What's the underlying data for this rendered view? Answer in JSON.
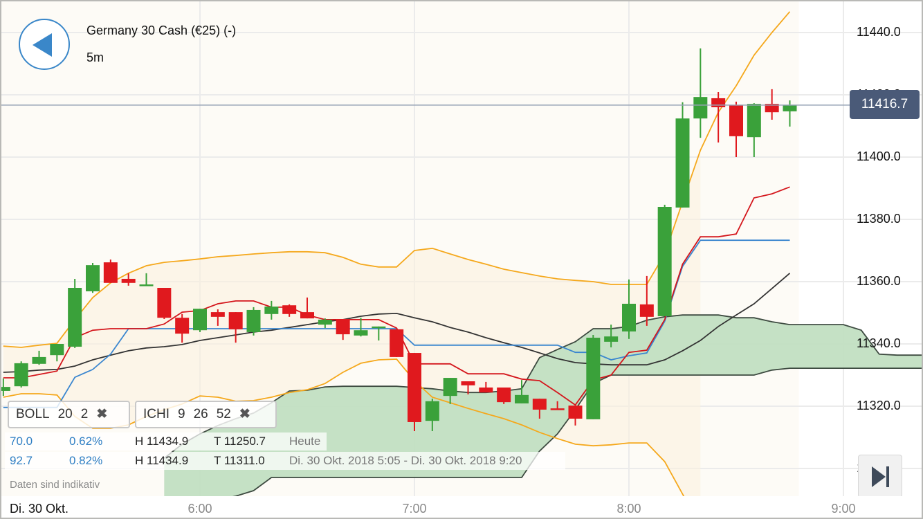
{
  "header": {
    "instrument": "Germany 30 Cash (€25) (-)",
    "interval": "5m"
  },
  "current_price": "11416.7",
  "indicators": [
    {
      "name": "BOLL",
      "params": [
        "20",
        "2"
      ],
      "remove": "✖"
    },
    {
      "name": "ICHI",
      "params": [
        "9",
        "26",
        "52"
      ],
      "remove": "✖"
    }
  ],
  "info_rows": [
    {
      "change": "70.0",
      "change_pct": "0.62%",
      "high": "H 11434.9",
      "low": "T 11250.7",
      "period": "Heute"
    },
    {
      "change": "92.7",
      "change_pct": "0.82%",
      "high": "H 11434.9",
      "low": "T 11311.0",
      "period": "Di. 30 Okt. 2018 5:05 - Di. 30 Okt. 2018 9:20"
    }
  ],
  "disclaimer": "Daten sind indikativ",
  "icons": {
    "back": "back-triangle-icon",
    "skip": "skip-to-end-icon",
    "remove": "close-x-icon"
  },
  "colors": {
    "up": "#3aa13a",
    "down": "#e0191e",
    "boll_bands": "#f5a81c",
    "boll_mid": "#333333",
    "tenkan": "#d4161c",
    "kijun": "#3a86cf",
    "cloud": "#c2dfc2",
    "price_tag": "#4a5a78"
  },
  "chart_data": {
    "type": "candlestick",
    "date_label": "Di. 30 Okt.",
    "x_ticks": [
      "6:00",
      "7:00",
      "8:00",
      "9:00"
    ],
    "y_ticks": [
      "11440.0",
      "11420.0",
      "11400.0",
      "11380.0",
      "11360.0",
      "11340.0",
      "11320.0",
      "11300.0"
    ],
    "ylim": [
      11291,
      11450
    ],
    "grid": true,
    "candles_fields": [
      "time",
      "open",
      "high",
      "low",
      "close"
    ],
    "candles": [
      [
        "05:05",
        11324.9,
        11328.9,
        11323.3,
        11326.2
      ],
      [
        "05:10",
        11326.4,
        11334.4,
        11326.0,
        11333.8
      ],
      [
        "05:15",
        11333.6,
        11337.8,
        11333.3,
        11335.8
      ],
      [
        "05:20",
        11336.4,
        11340.0,
        11334.4,
        11340.0
      ],
      [
        "05:25",
        11339.1,
        11360.9,
        11338.7,
        11358.0
      ],
      [
        "05:30",
        11356.9,
        11366.0,
        11356.4,
        11365.3
      ],
      [
        "05:35",
        11366.2,
        11367.1,
        11359.6,
        11359.6
      ],
      [
        "05:40",
        11360.9,
        11362.7,
        11358.7,
        11359.6
      ],
      [
        "05:45",
        11358.9,
        11362.7,
        11358.9,
        11359.1
      ],
      [
        "05:50",
        11358.0,
        11358.0,
        11348.0,
        11348.4
      ],
      [
        "05:55",
        11348.4,
        11349.6,
        11340.4,
        11343.3
      ],
      [
        "06:00",
        11344.4,
        11351.3,
        11343.8,
        11351.3
      ],
      [
        "06:05",
        11350.2,
        11351.1,
        11345.8,
        11348.7
      ],
      [
        "06:10",
        11350.2,
        11350.2,
        11340.4,
        11344.7
      ],
      [
        "06:15",
        11343.8,
        11351.8,
        11342.7,
        11350.9
      ],
      [
        "06:20",
        11349.6,
        11353.8,
        11347.8,
        11352.0
      ],
      [
        "06:25",
        11352.4,
        11352.7,
        11348.7,
        11349.6
      ],
      [
        "06:30",
        11350.2,
        11354.9,
        11348.2,
        11348.2
      ],
      [
        "06:35",
        11346.2,
        11348.2,
        11345.1,
        11347.8
      ],
      [
        "06:40",
        11348.0,
        11348.0,
        11341.3,
        11343.1
      ],
      [
        "06:45",
        11342.7,
        11348.4,
        11342.4,
        11344.4
      ],
      [
        "06:50",
        11345.1,
        11345.6,
        11341.1,
        11345.6
      ],
      [
        "06:55",
        11344.7,
        11344.7,
        11335.8,
        11335.8
      ],
      [
        "07:00",
        11337.1,
        11337.1,
        11312.0,
        11314.9
      ],
      [
        "07:05",
        11315.3,
        11322.4,
        11312.0,
        11321.6
      ],
      [
        "07:10",
        11323.3,
        11329.1,
        11320.7,
        11329.1
      ],
      [
        "07:15",
        11328.0,
        11328.0,
        11323.8,
        11326.7
      ],
      [
        "07:20",
        11326.0,
        11327.8,
        11324.4,
        11324.4
      ],
      [
        "07:25",
        11326.0,
        11326.0,
        11320.7,
        11321.3
      ],
      [
        "07:30",
        11320.9,
        11328.4,
        11320.9,
        11323.6
      ],
      [
        "07:35",
        11322.4,
        11322.4,
        11316.0,
        11318.9
      ],
      [
        "07:40",
        11319.3,
        11321.6,
        11318.9,
        11318.9
      ],
      [
        "07:45",
        11320.2,
        11320.2,
        11313.8,
        11316.0
      ],
      [
        "07:50",
        11315.8,
        11342.9,
        11315.8,
        11342.0
      ],
      [
        "07:55",
        11340.7,
        11346.2,
        11338.9,
        11342.4
      ],
      [
        "08:00",
        11344.0,
        11360.7,
        11341.6,
        11352.9
      ],
      [
        "08:05",
        11352.7,
        11361.8,
        11345.8,
        11348.7
      ],
      [
        "08:10",
        11348.9,
        11384.7,
        11348.9,
        11384.0
      ],
      [
        "08:15",
        11383.8,
        11417.6,
        11383.8,
        11412.4
      ],
      [
        "08:20",
        11412.4,
        11434.9,
        11406.2,
        11419.3
      ],
      [
        "08:25",
        11418.9,
        11420.9,
        11404.7,
        11416.0
      ],
      [
        "08:30",
        11416.7,
        11417.8,
        11400.0,
        11406.7
      ],
      [
        "08:35",
        11406.4,
        11417.3,
        11400.0,
        11417.1
      ],
      [
        "08:40",
        11417.1,
        11421.8,
        11412.0,
        11414.4
      ],
      [
        "08:45",
        11414.7,
        11418.2,
        11409.8,
        11416.7
      ]
    ],
    "boll_upper": [
      [
        "05:05",
        11339.3
      ],
      [
        "05:10",
        11338.9
      ],
      [
        "05:15",
        11339.6
      ],
      [
        "05:20",
        11340.2
      ],
      [
        "05:25",
        11347.8
      ],
      [
        "05:30",
        11354.9
      ],
      [
        "05:35",
        11359.6
      ],
      [
        "05:40",
        11362.7
      ],
      [
        "05:45",
        11365.1
      ],
      [
        "05:50",
        11366.2
      ],
      [
        "05:55",
        11366.7
      ],
      [
        "06:00",
        11367.3
      ],
      [
        "06:05",
        11368.0
      ],
      [
        "06:10",
        11368.4
      ],
      [
        "06:15",
        11368.9
      ],
      [
        "06:20",
        11369.3
      ],
      [
        "06:25",
        11369.6
      ],
      [
        "06:30",
        11369.6
      ],
      [
        "06:35",
        11369.3
      ],
      [
        "06:40",
        11367.8
      ],
      [
        "06:45",
        11365.6
      ],
      [
        "06:50",
        11364.7
      ],
      [
        "06:55",
        11364.7
      ],
      [
        "07:00",
        11370.0
      ],
      [
        "07:05",
        11370.7
      ],
      [
        "07:10",
        11368.9
      ],
      [
        "07:15",
        11367.1
      ],
      [
        "07:20",
        11365.6
      ],
      [
        "07:25",
        11364.0
      ],
      [
        "07:30",
        11362.9
      ],
      [
        "07:35",
        11361.8
      ],
      [
        "07:40",
        11360.9
      ],
      [
        "07:45",
        11360.4
      ],
      [
        "07:50",
        11360.0
      ],
      [
        "07:55",
        11359.1
      ],
      [
        "08:00",
        11359.1
      ],
      [
        "08:05",
        11359.1
      ],
      [
        "08:10",
        11368.9
      ],
      [
        "08:15",
        11385.6
      ],
      [
        "08:20",
        11402.2
      ],
      [
        "08:25",
        11414.4
      ],
      [
        "08:30",
        11422.9
      ],
      [
        "08:35",
        11432.7
      ],
      [
        "08:40",
        11440.0
      ],
      [
        "08:45",
        11446.7
      ]
    ],
    "boll_mid": [
      [
        "05:05",
        11330.9
      ],
      [
        "05:10",
        11331.1
      ],
      [
        "05:15",
        11331.6
      ],
      [
        "05:20",
        11331.8
      ],
      [
        "05:25",
        11332.9
      ],
      [
        "05:30",
        11334.9
      ],
      [
        "05:35",
        11336.4
      ],
      [
        "05:40",
        11337.8
      ],
      [
        "05:45",
        11338.7
      ],
      [
        "05:50",
        11339.1
      ],
      [
        "05:55",
        11339.8
      ],
      [
        "06:00",
        11341.1
      ],
      [
        "06:05",
        11342.0
      ],
      [
        "06:10",
        11342.9
      ],
      [
        "06:15",
        11343.8
      ],
      [
        "06:20",
        11344.4
      ],
      [
        "06:25",
        11345.3
      ],
      [
        "06:30",
        11346.2
      ],
      [
        "06:35",
        11347.1
      ],
      [
        "06:40",
        11347.8
      ],
      [
        "06:45",
        11348.9
      ],
      [
        "06:50",
        11349.6
      ],
      [
        "06:55",
        11349.8
      ],
      [
        "07:00",
        11348.4
      ],
      [
        "07:05",
        11347.1
      ],
      [
        "07:10",
        11345.3
      ],
      [
        "07:15",
        11343.8
      ],
      [
        "07:20",
        11342.0
      ],
      [
        "07:25",
        11340.4
      ],
      [
        "07:30",
        11338.9
      ],
      [
        "07:35",
        11337.1
      ],
      [
        "07:40",
        11335.3
      ],
      [
        "07:45",
        11334.0
      ],
      [
        "07:50",
        11333.6
      ],
      [
        "07:55",
        11333.3
      ],
      [
        "08:00",
        11333.3
      ],
      [
        "08:05",
        11333.3
      ],
      [
        "08:10",
        11334.9
      ],
      [
        "08:15",
        11337.8
      ],
      [
        "08:20",
        11341.1
      ],
      [
        "08:25",
        11345.6
      ],
      [
        "08:30",
        11349.3
      ],
      [
        "08:35",
        11352.9
      ],
      [
        "08:40",
        11357.8
      ],
      [
        "08:45",
        11362.7
      ]
    ],
    "boll_lower": [
      [
        "05:05",
        11322.9
      ],
      [
        "05:10",
        11324.0
      ],
      [
        "05:15",
        11324.0
      ],
      [
        "05:20",
        11323.6
      ],
      [
        "05:25",
        11316.7
      ],
      [
        "05:30",
        11312.9
      ],
      [
        "05:35",
        11312.9
      ],
      [
        "05:40",
        11314.0
      ],
      [
        "05:45",
        11316.7
      ],
      [
        "05:50",
        11318.9
      ],
      [
        "05:55",
        11320.7
      ],
      [
        "06:00",
        11323.3
      ],
      [
        "06:05",
        11322.9
      ],
      [
        "06:10",
        11321.6
      ],
      [
        "06:15",
        11321.8
      ],
      [
        "06:20",
        11322.9
      ],
      [
        "06:25",
        11324.4
      ],
      [
        "06:30",
        11325.3
      ],
      [
        "06:35",
        11327.3
      ],
      [
        "06:40",
        11330.9
      ],
      [
        "06:45",
        11333.8
      ],
      [
        "06:50",
        11334.9
      ],
      [
        "06:55",
        11335.1
      ],
      [
        "07:00",
        11328.2
      ],
      [
        "07:05",
        11322.9
      ],
      [
        "07:10",
        11321.1
      ],
      [
        "07:15",
        11319.3
      ],
      [
        "07:20",
        11317.6
      ],
      [
        "07:25",
        11316.0
      ],
      [
        "07:30",
        11314.0
      ],
      [
        "07:35",
        11311.6
      ],
      [
        "07:40",
        11309.6
      ],
      [
        "07:45",
        11307.8
      ],
      [
        "07:50",
        11307.3
      ],
      [
        "07:55",
        11307.6
      ],
      [
        "08:00",
        11308.2
      ],
      [
        "08:05",
        11308.2
      ],
      [
        "08:10",
        11302.2
      ],
      [
        "08:15",
        11291.8
      ],
      [
        "08:20",
        11281.1
      ]
    ],
    "tenkan": [
      [
        "05:05",
        11329.1
      ],
      [
        "05:10",
        11329.1
      ],
      [
        "05:15",
        11330.2
      ],
      [
        "05:20",
        11331.3
      ],
      [
        "05:25",
        11342.0
      ],
      [
        "05:30",
        11344.4
      ],
      [
        "05:35",
        11344.9
      ],
      [
        "05:40",
        11344.9
      ],
      [
        "05:45",
        11344.9
      ],
      [
        "05:50",
        11346.4
      ],
      [
        "05:55",
        11350.2
      ],
      [
        "06:00",
        11350.7
      ],
      [
        "06:05",
        11352.9
      ],
      [
        "06:10",
        11353.8
      ],
      [
        "06:15",
        11353.8
      ],
      [
        "06:20",
        11351.8
      ],
      [
        "06:25",
        11351.8
      ],
      [
        "06:30",
        11349.3
      ],
      [
        "06:35",
        11347.8
      ],
      [
        "06:40",
        11347.8
      ],
      [
        "06:45",
        11347.8
      ],
      [
        "06:50",
        11347.8
      ],
      [
        "06:55",
        11345.1
      ],
      [
        "07:00",
        11333.6
      ],
      [
        "07:05",
        11333.6
      ],
      [
        "07:10",
        11333.6
      ],
      [
        "07:15",
        11330.4
      ],
      [
        "07:20",
        11330.4
      ],
      [
        "07:25",
        11330.4
      ],
      [
        "07:30",
        11328.7
      ],
      [
        "07:35",
        11328.2
      ],
      [
        "07:40",
        11324.4
      ],
      [
        "07:45",
        11320.4
      ],
      [
        "07:50",
        11328.4
      ],
      [
        "07:55",
        11330.0
      ],
      [
        "08:00",
        11337.3
      ],
      [
        "08:05",
        11338.0
      ],
      [
        "08:10",
        11347.8
      ],
      [
        "08:15",
        11365.6
      ],
      [
        "08:20",
        11374.4
      ],
      [
        "08:25",
        11374.4
      ],
      [
        "08:30",
        11375.3
      ],
      [
        "08:35",
        11386.9
      ],
      [
        "08:40",
        11388.2
      ],
      [
        "08:45",
        11390.4
      ]
    ],
    "kijun": [
      [
        "05:05",
        11319.6
      ],
      [
        "05:10",
        11319.6
      ],
      [
        "05:15",
        11319.6
      ],
      [
        "05:20",
        11319.6
      ],
      [
        "05:25",
        11329.3
      ],
      [
        "05:30",
        11331.8
      ],
      [
        "05:35",
        11336.7
      ],
      [
        "05:40",
        11344.9
      ],
      [
        "06:55",
        11344.9
      ],
      [
        "07:00",
        11339.6
      ],
      [
        "07:40",
        11339.6
      ],
      [
        "07:45",
        11337.3
      ],
      [
        "07:50",
        11337.3
      ],
      [
        "07:55",
        11334.9
      ],
      [
        "08:00",
        11336.2
      ],
      [
        "08:05",
        11337.1
      ],
      [
        "08:10",
        11347.3
      ],
      [
        "08:15",
        11364.9
      ],
      [
        "08:20",
        11373.3
      ],
      [
        "08:45",
        11373.3
      ]
    ],
    "senkou_upper": [
      [
        "05:50",
        11303.3
      ],
      [
        "05:55",
        11307.8
      ],
      [
        "06:00",
        11311.1
      ],
      [
        "06:05",
        11313.8
      ],
      [
        "06:10",
        11316.0
      ],
      [
        "06:15",
        11317.8
      ],
      [
        "06:20",
        11321.1
      ],
      [
        "06:25",
        11324.9
      ],
      [
        "06:30",
        11325.1
      ],
      [
        "06:35",
        11326.2
      ],
      [
        "06:40",
        11326.4
      ],
      [
        "06:55",
        11326.4
      ],
      [
        "07:00",
        11326.0
      ],
      [
        "07:05",
        11325.6
      ],
      [
        "07:10",
        11324.9
      ],
      [
        "07:15",
        11324.4
      ],
      [
        "07:20",
        11324.4
      ],
      [
        "07:25",
        11324.9
      ],
      [
        "07:30",
        11325.6
      ],
      [
        "07:35",
        11335.6
      ],
      [
        "07:40",
        11338.2
      ],
      [
        "07:45",
        11340.7
      ],
      [
        "07:50",
        11344.9
      ],
      [
        "07:55",
        11344.9
      ],
      [
        "08:00",
        11345.6
      ],
      [
        "08:05",
        11347.6
      ],
      [
        "08:10",
        11348.7
      ],
      [
        "08:15",
        11349.3
      ],
      [
        "08:25",
        11349.3
      ],
      [
        "08:30",
        11348.4
      ],
      [
        "08:35",
        11348.4
      ],
      [
        "08:40",
        11347.1
      ],
      [
        "08:45",
        11346.2
      ],
      [
        "09:00",
        11346.2
      ],
      [
        "09:05",
        11344.4
      ],
      [
        "09:10",
        11336.7
      ],
      [
        "09:15",
        11336.4
      ],
      [
        "09:25",
        11336.4
      ]
    ],
    "senkou_lower": [
      [
        "05:50",
        11285.6
      ],
      [
        "05:55",
        11287.8
      ],
      [
        "06:00",
        11288.9
      ],
      [
        "06:05",
        11290.0
      ],
      [
        "06:10",
        11291.1
      ],
      [
        "06:15",
        11292.9
      ],
      [
        "06:20",
        11297.1
      ],
      [
        "07:30",
        11297.1
      ],
      [
        "07:35",
        11305.6
      ],
      [
        "07:40",
        11311.1
      ],
      [
        "07:45",
        11318.9
      ],
      [
        "07:50",
        11327.3
      ],
      [
        "07:55",
        11330.0
      ],
      [
        "08:35",
        11330.0
      ],
      [
        "08:40",
        11331.6
      ],
      [
        "08:45",
        11332.2
      ],
      [
        "09:25",
        11332.2
      ]
    ]
  }
}
